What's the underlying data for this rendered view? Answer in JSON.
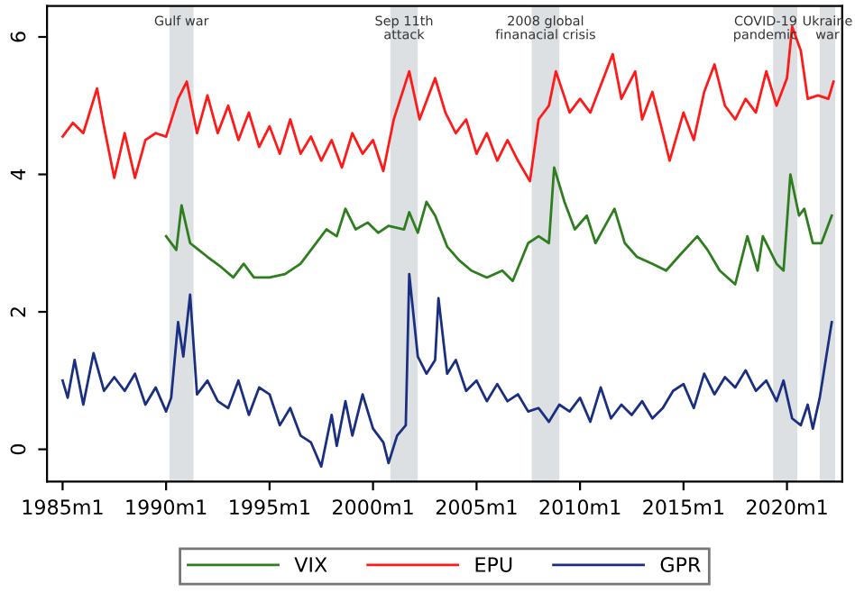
{
  "chart_data": {
    "type": "line",
    "xlim": [
      "1984-04",
      "2022-09"
    ],
    "ylim": [
      -0.47,
      6.45
    ],
    "xticks": [
      {
        "value": "1985-01",
        "label": "1985m1"
      },
      {
        "value": "1990-01",
        "label": "1990m1"
      },
      {
        "value": "1995-01",
        "label": "1995m1"
      },
      {
        "value": "2000-01",
        "label": "2000m1"
      },
      {
        "value": "2005-01",
        "label": "2005m1"
      },
      {
        "value": "2010-01",
        "label": "2010m1"
      },
      {
        "value": "2015-01",
        "label": "2015m1"
      },
      {
        "value": "2020-01",
        "label": "2020m1"
      }
    ],
    "yticks": [
      0,
      2,
      4,
      6
    ],
    "grid": false,
    "legend": "bottom",
    "line_style": "solid",
    "marker": "none",
    "bands": [
      {
        "axis": "x",
        "from": "1990-03",
        "to": "1991-05",
        "label": "Gulf war",
        "color": "#dde0e3"
      },
      {
        "axis": "x",
        "from": "2000-11",
        "to": "2002-03",
        "label": "Sep 11th\nattack",
        "color": "#dde0e3"
      },
      {
        "axis": "x",
        "from": "2007-09",
        "to": "2009-01",
        "label": "2008 global\nfinanacial crisis",
        "color": "#dde0e3"
      },
      {
        "axis": "x",
        "from": "2019-05",
        "to": "2020-07",
        "label": "COVID-19\npandemic",
        "color": "#dde0e3"
      },
      {
        "axis": "x",
        "from": "2021-08",
        "to": "2022-05",
        "label": "Ukraine\nwar",
        "color": "#dde0e3"
      }
    ],
    "series": [
      {
        "name": "VIX",
        "color": "#2e7d1e",
        "x": [
          "1990-01",
          "1990-07",
          "1990-10",
          "1991-03",
          "1991-08",
          "1992-01",
          "1992-09",
          "1993-04",
          "1993-10",
          "1994-04",
          "1995-01",
          "1995-10",
          "1996-07",
          "1997-01",
          "1997-10",
          "1998-04",
          "1998-09",
          "1999-03",
          "1999-10",
          "2000-04",
          "2000-10",
          "2001-07",
          "2001-10",
          "2002-03",
          "2002-08",
          "2003-01",
          "2003-08",
          "2004-03",
          "2004-10",
          "2005-07",
          "2006-04",
          "2006-10",
          "2007-07",
          "2008-01",
          "2008-07",
          "2008-10",
          "2009-04",
          "2009-10",
          "2010-05",
          "2010-10",
          "2011-09",
          "2012-03",
          "2012-10",
          "2013-07",
          "2014-03",
          "2014-10",
          "2015-09",
          "2016-03",
          "2016-10",
          "2017-07",
          "2018-02",
          "2018-08",
          "2018-11",
          "2019-07",
          "2019-11",
          "2020-03",
          "2020-08",
          "2020-11",
          "2021-04",
          "2021-09",
          "2022-03"
        ],
        "values": [
          3.1,
          2.9,
          3.55,
          3.0,
          2.9,
          2.8,
          2.65,
          2.5,
          2.7,
          2.5,
          2.5,
          2.55,
          2.7,
          2.9,
          3.2,
          3.1,
          3.5,
          3.2,
          3.3,
          3.15,
          3.25,
          3.2,
          3.45,
          3.15,
          3.6,
          3.4,
          2.95,
          2.75,
          2.6,
          2.5,
          2.6,
          2.45,
          3.0,
          3.1,
          3.0,
          4.1,
          3.6,
          3.2,
          3.4,
          3.0,
          3.5,
          3.0,
          2.8,
          2.7,
          2.6,
          2.8,
          3.1,
          2.9,
          2.6,
          2.4,
          3.1,
          2.6,
          3.1,
          2.7,
          2.6,
          4.0,
          3.4,
          3.5,
          3.0,
          3.0,
          3.4
        ]
      },
      {
        "name": "EPU",
        "color": "#ff1a1a",
        "x": [
          "1985-01",
          "1985-07",
          "1986-01",
          "1986-09",
          "1987-01",
          "1987-07",
          "1988-01",
          "1988-07",
          "1989-01",
          "1989-07",
          "1990-01",
          "1990-08",
          "1991-01",
          "1991-07",
          "1992-01",
          "1992-07",
          "1993-01",
          "1993-07",
          "1994-01",
          "1994-07",
          "1995-01",
          "1995-07",
          "1996-01",
          "1996-07",
          "1997-01",
          "1997-07",
          "1998-01",
          "1998-07",
          "1999-01",
          "1999-07",
          "2000-01",
          "2000-07",
          "2001-01",
          "2001-10",
          "2002-04",
          "2003-01",
          "2003-07",
          "2004-01",
          "2004-07",
          "2005-01",
          "2005-07",
          "2006-01",
          "2006-07",
          "2007-01",
          "2007-08",
          "2008-01",
          "2008-07",
          "2008-11",
          "2009-07",
          "2010-01",
          "2010-07",
          "2011-08",
          "2012-01",
          "2012-09",
          "2013-01",
          "2013-07",
          "2014-01",
          "2014-05",
          "2015-01",
          "2015-07",
          "2016-01",
          "2016-07",
          "2017-01",
          "2017-07",
          "2018-01",
          "2018-07",
          "2019-01",
          "2019-07",
          "2020-01",
          "2020-04",
          "2020-09",
          "2021-01",
          "2021-07",
          "2022-01",
          "2022-04"
        ],
        "values": [
          4.55,
          4.75,
          4.6,
          5.25,
          4.7,
          3.95,
          4.6,
          3.95,
          4.5,
          4.6,
          4.55,
          5.1,
          5.35,
          4.6,
          5.15,
          4.6,
          5.0,
          4.5,
          4.9,
          4.4,
          4.7,
          4.3,
          4.8,
          4.3,
          4.55,
          4.2,
          4.5,
          4.1,
          4.6,
          4.3,
          4.5,
          4.05,
          4.8,
          5.5,
          4.8,
          5.4,
          4.9,
          4.6,
          4.8,
          4.3,
          4.6,
          4.2,
          4.5,
          4.2,
          3.9,
          4.8,
          5.0,
          5.5,
          4.9,
          5.1,
          4.9,
          5.75,
          5.1,
          5.5,
          4.8,
          5.2,
          4.6,
          4.2,
          4.9,
          4.5,
          5.2,
          5.6,
          5.0,
          4.8,
          5.1,
          4.9,
          5.5,
          5.0,
          5.4,
          6.15,
          5.8,
          5.1,
          5.15,
          5.1,
          5.35
        ]
      },
      {
        "name": "GPR",
        "color": "#1a2f80",
        "x": [
          "1985-01",
          "1985-04",
          "1985-08",
          "1986-01",
          "1986-07",
          "1987-01",
          "1987-07",
          "1988-01",
          "1988-07",
          "1989-01",
          "1989-07",
          "1990-01",
          "1990-04",
          "1990-08",
          "1990-11",
          "1991-03",
          "1991-07",
          "1992-01",
          "1992-07",
          "1993-01",
          "1993-07",
          "1994-01",
          "1994-07",
          "1995-01",
          "1995-07",
          "1996-01",
          "1996-07",
          "1997-01",
          "1997-07",
          "1998-01",
          "1998-04",
          "1998-09",
          "1999-01",
          "1999-07",
          "2000-01",
          "2000-07",
          "2000-10",
          "2001-03",
          "2001-08",
          "2001-10",
          "2002-03",
          "2002-08",
          "2003-01",
          "2003-03",
          "2003-08",
          "2004-01",
          "2004-07",
          "2005-01",
          "2005-07",
          "2006-01",
          "2006-07",
          "2007-01",
          "2007-07",
          "2008-01",
          "2008-07",
          "2009-01",
          "2009-07",
          "2010-01",
          "2010-07",
          "2011-01",
          "2011-07",
          "2012-01",
          "2012-07",
          "2013-01",
          "2013-07",
          "2014-01",
          "2014-07",
          "2015-01",
          "2015-07",
          "2016-01",
          "2016-07",
          "2017-01",
          "2017-07",
          "2018-01",
          "2018-07",
          "2019-01",
          "2019-07",
          "2019-11",
          "2020-04",
          "2020-09",
          "2021-01",
          "2021-04",
          "2021-08",
          "2022-03"
        ],
        "values": [
          1.0,
          0.75,
          1.3,
          0.65,
          1.4,
          0.85,
          1.05,
          0.85,
          1.1,
          0.65,
          0.9,
          0.55,
          0.75,
          1.85,
          1.35,
          2.25,
          0.8,
          1.0,
          0.7,
          0.6,
          1.0,
          0.5,
          0.9,
          0.8,
          0.35,
          0.6,
          0.2,
          0.1,
          -0.25,
          0.5,
          0.05,
          0.7,
          0.2,
          0.8,
          0.3,
          0.1,
          -0.2,
          0.2,
          0.35,
          2.55,
          1.35,
          1.1,
          1.3,
          2.2,
          1.1,
          1.3,
          0.85,
          1.0,
          0.7,
          0.95,
          0.7,
          0.8,
          0.55,
          0.6,
          0.4,
          0.65,
          0.55,
          0.75,
          0.4,
          0.9,
          0.45,
          0.65,
          0.5,
          0.7,
          0.45,
          0.6,
          0.85,
          0.95,
          0.6,
          1.1,
          0.8,
          1.05,
          0.9,
          1.15,
          0.85,
          1.0,
          0.7,
          1.0,
          0.45,
          0.35,
          0.65,
          0.3,
          0.75,
          1.85
        ]
      }
    ]
  }
}
